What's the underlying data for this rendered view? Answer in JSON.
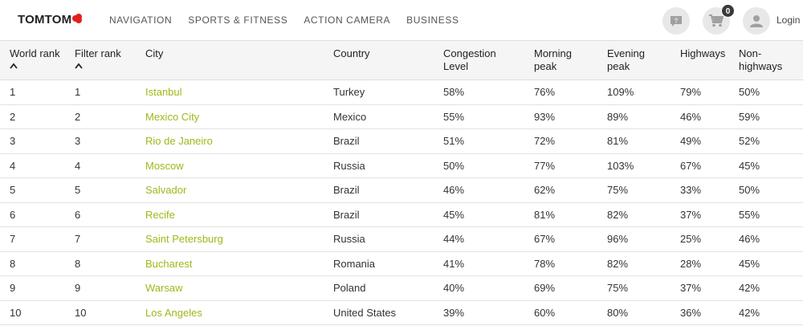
{
  "header": {
    "logo_text": "TOMTOM",
    "nav": [
      "NAVIGATION",
      "SPORTS & FITNESS",
      "ACTION CAMERA",
      "BUSINESS"
    ],
    "cart_count": "0",
    "login_label": "Login",
    "icons": {
      "chat": "chat-bubble-icon",
      "cart": "shopping-cart-icon",
      "user": "user-icon"
    },
    "accent_color": "#e2211c"
  },
  "table": {
    "columns": [
      "World rank",
      "Filter rank",
      "City",
      "Country",
      "Congestion Level",
      "Morning peak",
      "Evening peak",
      "Highways",
      "Non-highways"
    ],
    "link_color": "#a3b619",
    "rows": [
      [
        "1",
        "1",
        "Istanbul",
        "Turkey",
        "58%",
        "76%",
        "109%",
        "79%",
        "50%"
      ],
      [
        "2",
        "2",
        "Mexico City",
        "Mexico",
        "55%",
        "93%",
        "89%",
        "46%",
        "59%"
      ],
      [
        "3",
        "3",
        "Rio de Janeiro",
        "Brazil",
        "51%",
        "72%",
        "81%",
        "49%",
        "52%"
      ],
      [
        "4",
        "4",
        "Moscow",
        "Russia",
        "50%",
        "77%",
        "103%",
        "67%",
        "45%"
      ],
      [
        "5",
        "5",
        "Salvador",
        "Brazil",
        "46%",
        "62%",
        "75%",
        "33%",
        "50%"
      ],
      [
        "6",
        "6",
        "Recife",
        "Brazil",
        "45%",
        "81%",
        "82%",
        "37%",
        "55%"
      ],
      [
        "7",
        "7",
        "Saint Petersburg",
        "Russia",
        "44%",
        "67%",
        "96%",
        "25%",
        "46%"
      ],
      [
        "8",
        "8",
        "Bucharest",
        "Romania",
        "41%",
        "78%",
        "82%",
        "28%",
        "45%"
      ],
      [
        "9",
        "9",
        "Warsaw",
        "Poland",
        "40%",
        "69%",
        "75%",
        "37%",
        "42%"
      ],
      [
        "10",
        "10",
        "Los Angeles",
        "United States",
        "39%",
        "60%",
        "80%",
        "36%",
        "42%"
      ]
    ]
  }
}
